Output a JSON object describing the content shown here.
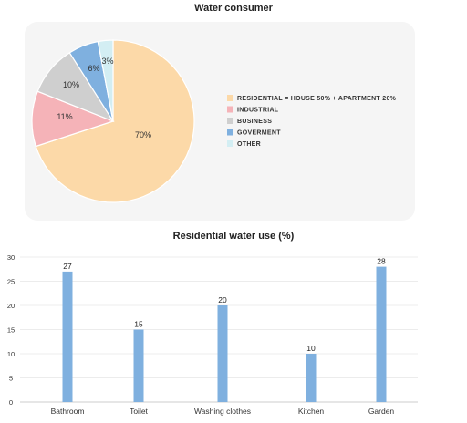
{
  "chart_data": [
    {
      "type": "pie",
      "title": "Water consumer",
      "legend_position": "right",
      "slices": [
        {
          "label": "RESIDENTIAL = HOUSE 50% + APARTMENT 20%",
          "value": 70,
          "display": "70%",
          "color": "#fcd9a8"
        },
        {
          "label": "INDUSTRIAL",
          "value": 11,
          "display": "11%",
          "color": "#f5b3b8"
        },
        {
          "label": "BUSINESS",
          "value": 10,
          "display": "10%",
          "color": "#cfcfcf"
        },
        {
          "label": "GOVERMENT",
          "value": 6,
          "display": "6%",
          "color": "#7fb0df"
        },
        {
          "label": "OTHER",
          "value": 3,
          "display": "3%",
          "color": "#d3eef3"
        }
      ]
    },
    {
      "type": "bar",
      "title": "Residential water use (%)",
      "xlabel": "",
      "ylabel": "",
      "ylim": [
        0,
        30
      ],
      "yticks": [
        0,
        5,
        10,
        15,
        20,
        25,
        30
      ],
      "grid": true,
      "bar_color": "#7fb0df",
      "categories": [
        "Bathroom",
        "Toilet",
        "Washing clothes",
        "Kitchen",
        "Garden"
      ],
      "values": [
        27,
        15,
        20,
        10,
        28
      ],
      "value_labels": [
        "27",
        "15",
        "20",
        "10",
        "28"
      ]
    }
  ]
}
